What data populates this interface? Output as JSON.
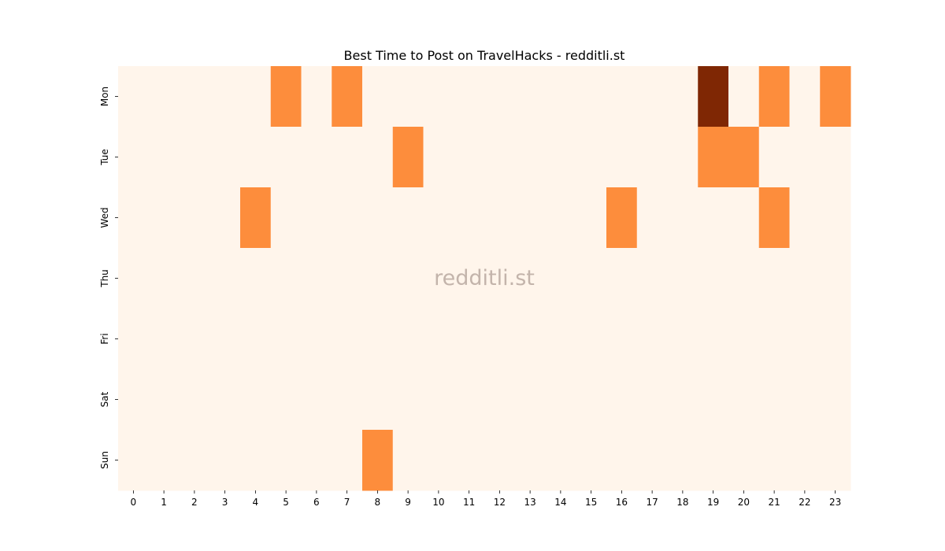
{
  "chart_data": {
    "type": "heatmap",
    "title": "Best Time to Post on TravelHacks - redditli.st",
    "watermark": "redditli.st",
    "xlabel": "",
    "ylabel": "",
    "x_categories": [
      "0",
      "1",
      "2",
      "3",
      "4",
      "5",
      "6",
      "7",
      "8",
      "9",
      "10",
      "11",
      "12",
      "13",
      "14",
      "15",
      "16",
      "17",
      "18",
      "19",
      "20",
      "21",
      "22",
      "23"
    ],
    "y_categories": [
      "Mon",
      "Tue",
      "Wed",
      "Thu",
      "Fri",
      "Sat",
      "Sun"
    ],
    "values": [
      [
        0,
        0,
        0,
        0,
        0,
        1,
        0,
        1,
        0,
        0,
        0,
        0,
        0,
        0,
        0,
        0,
        0,
        0,
        0,
        2,
        0,
        1,
        0,
        1
      ],
      [
        0,
        0,
        0,
        0,
        0,
        0,
        0,
        0,
        0,
        1,
        0,
        0,
        0,
        0,
        0,
        0,
        0,
        0,
        0,
        1,
        1,
        0,
        0,
        0
      ],
      [
        0,
        0,
        0,
        0,
        1,
        0,
        0,
        0,
        0,
        0,
        0,
        0,
        0,
        0,
        0,
        0,
        1,
        0,
        0,
        0,
        0,
        1,
        0,
        0
      ],
      [
        0,
        0,
        0,
        0,
        0,
        0,
        0,
        0,
        0,
        0,
        0,
        0,
        0,
        0,
        0,
        0,
        0,
        0,
        0,
        0,
        0,
        0,
        0,
        0
      ],
      [
        0,
        0,
        0,
        0,
        0,
        0,
        0,
        0,
        0,
        0,
        0,
        0,
        0,
        0,
        0,
        0,
        0,
        0,
        0,
        0,
        0,
        0,
        0,
        0
      ],
      [
        0,
        0,
        0,
        0,
        0,
        0,
        0,
        0,
        0,
        0,
        0,
        0,
        0,
        0,
        0,
        0,
        0,
        0,
        0,
        0,
        0,
        0,
        0,
        0
      ],
      [
        0,
        0,
        0,
        0,
        0,
        0,
        0,
        0,
        1,
        0,
        0,
        0,
        0,
        0,
        0,
        0,
        0,
        0,
        0,
        0,
        0,
        0,
        0,
        0
      ]
    ],
    "colormap": {
      "0": "#fff5eb",
      "1": "#fd8d3c",
      "2": "#7f2704"
    },
    "grid": false,
    "legend": "none"
  }
}
